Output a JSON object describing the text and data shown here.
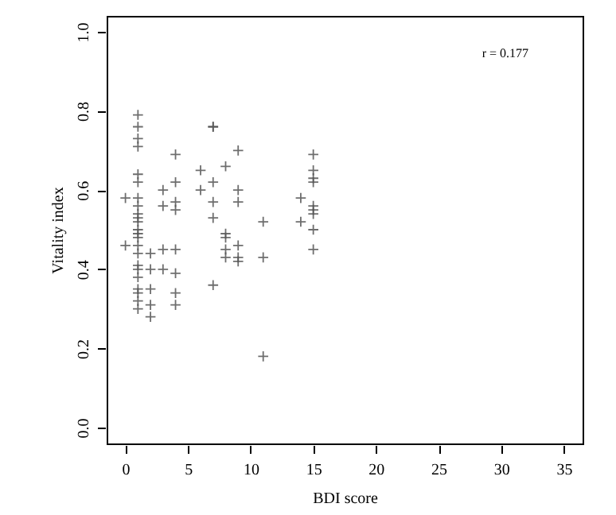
{
  "chart_data": {
    "type": "scatter",
    "xlabel": "BDI score",
    "ylabel": "Vitality index",
    "annotations": [
      "r =  0.177"
    ],
    "x": [
      0,
      0,
      1,
      1,
      1,
      1,
      1,
      1,
      1,
      1,
      1,
      1,
      1,
      1,
      1,
      1,
      1,
      1,
      1,
      1,
      1,
      1,
      1,
      1,
      1,
      2,
      2,
      2,
      2,
      2,
      3,
      3,
      3,
      3,
      4,
      4,
      4,
      4,
      4,
      4,
      4,
      4,
      6,
      6,
      7,
      7,
      7,
      7,
      7,
      7,
      8,
      8,
      8,
      8,
      8,
      9,
      9,
      9,
      9,
      9,
      9,
      11,
      11,
      11,
      14,
      14,
      15,
      15,
      15,
      15,
      15,
      15,
      15,
      15,
      15
    ],
    "series": [
      {
        "color": "#555555",
        "values": [
          0.58,
          0.46,
          0.79,
          0.76,
          0.73,
          0.71,
          0.64,
          0.62,
          0.58,
          0.56,
          0.54,
          0.53,
          0.52,
          0.5,
          0.49,
          0.48,
          0.46,
          0.44,
          0.41,
          0.4,
          0.38,
          0.35,
          0.34,
          0.32,
          0.3,
          0.44,
          0.4,
          0.35,
          0.31,
          0.28,
          0.6,
          0.56,
          0.45,
          0.4,
          0.69,
          0.62,
          0.57,
          0.55,
          0.45,
          0.39,
          0.34,
          0.31,
          0.65,
          0.6,
          0.76,
          0.76,
          0.62,
          0.57,
          0.53,
          0.36,
          0.66,
          0.49,
          0.48,
          0.45,
          0.43,
          0.7,
          0.6,
          0.57,
          0.46,
          0.43,
          0.42,
          0.52,
          0.43,
          0.18,
          0.58,
          0.52,
          0.69,
          0.65,
          0.63,
          0.62,
          0.56,
          0.55,
          0.54,
          0.5,
          0.45
        ]
      }
    ],
    "xlim": [
      -1.5,
      36.5
    ],
    "ylim": [
      -0.04,
      1.04
    ],
    "xticks": [
      0,
      5,
      10,
      15,
      20,
      25,
      30,
      35
    ],
    "yticks": [
      {
        "value": 0,
        "label": "0.0"
      },
      {
        "value": 0.2,
        "label": "0.2"
      },
      {
        "value": 0.4,
        "label": "0.4"
      },
      {
        "value": 0.6,
        "label": "0.6"
      },
      {
        "value": 0.8,
        "label": "0.8"
      },
      {
        "value": 1,
        "label": "1.0"
      }
    ],
    "marker": "cross",
    "grid": false
  }
}
